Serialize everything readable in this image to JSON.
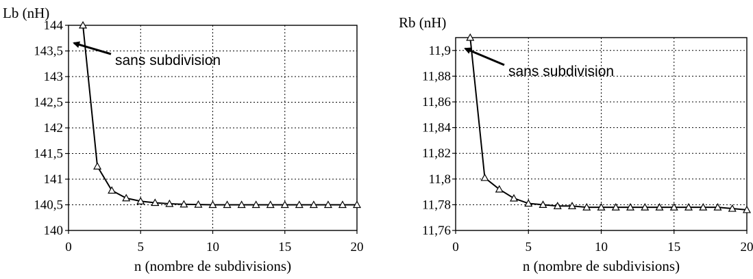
{
  "chart_data": [
    {
      "type": "line",
      "ylabel": "Lb (nH)",
      "xlabel": "n (nombre de subdivisions)",
      "xlim": [
        0,
        20
      ],
      "ylim": [
        140,
        144
      ],
      "xticks": [
        0,
        5,
        10,
        15,
        20
      ],
      "yticks": [
        140,
        140.5,
        141,
        141.5,
        142,
        142.5,
        143,
        143.5,
        144
      ],
      "ytick_labels": [
        "140",
        "140,5",
        "141",
        "141,5",
        "142",
        "142,5",
        "143",
        "143,5",
        "144"
      ],
      "grid": true,
      "annotation": "sans subdivision",
      "x": [
        1,
        2,
        3,
        4,
        5,
        6,
        7,
        8,
        9,
        10,
        11,
        12,
        13,
        14,
        15,
        16,
        17,
        18,
        19,
        20
      ],
      "y": [
        144.0,
        141.25,
        140.78,
        140.63,
        140.57,
        140.54,
        140.52,
        140.51,
        140.505,
        140.5,
        140.5,
        140.5,
        140.5,
        140.5,
        140.5,
        140.5,
        140.5,
        140.5,
        140.5,
        140.5
      ]
    },
    {
      "type": "line",
      "ylabel": "Rb (nH)",
      "xlabel": "n (nombre de subdivisions)",
      "xlim": [
        0,
        20
      ],
      "ylim": [
        11.76,
        11.91
      ],
      "xticks": [
        0,
        5,
        10,
        15,
        20
      ],
      "yticks": [
        11.76,
        11.78,
        11.8,
        11.82,
        11.84,
        11.86,
        11.88,
        11.9
      ],
      "ytick_labels": [
        "11,76",
        "11,78",
        "11,8",
        "11,82",
        "11,84",
        "11,86",
        "11,88",
        "11,9"
      ],
      "grid": true,
      "annotation": "sans subdivision",
      "x": [
        1,
        2,
        3,
        4,
        5,
        6,
        7,
        8,
        9,
        10,
        11,
        12,
        13,
        14,
        15,
        16,
        17,
        18,
        19,
        20
      ],
      "y": [
        11.91,
        11.801,
        11.792,
        11.785,
        11.781,
        11.78,
        11.779,
        11.779,
        11.778,
        11.778,
        11.778,
        11.778,
        11.778,
        11.778,
        11.778,
        11.778,
        11.778,
        11.778,
        11.777,
        11.776
      ]
    }
  ]
}
